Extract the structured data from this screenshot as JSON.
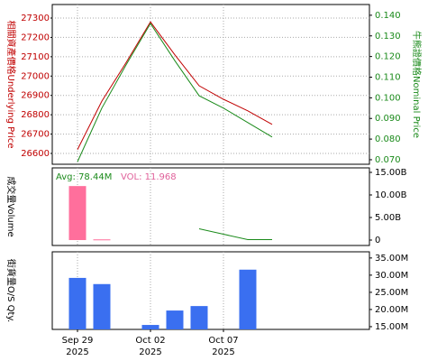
{
  "chart_data": [
    {
      "type": "line",
      "axis_label": "相關資產價格Underlying Price",
      "y2_label": "牛熊證價格Nominal Price",
      "ylim": [
        26544,
        27370
      ],
      "yticks": [
        26600,
        26700,
        26800,
        26900,
        27000,
        27100,
        27200,
        27300
      ],
      "y2lim": [
        0.0678,
        0.1452
      ],
      "y2ticks": [
        {
          "value": 0.07,
          "label": "0.070"
        },
        {
          "value": 0.08,
          "label": "0.080"
        },
        {
          "value": 0.09,
          "label": "0.090"
        },
        {
          "value": 0.1,
          "label": "0.100"
        },
        {
          "value": 0.11,
          "label": "0.110"
        },
        {
          "value": 0.12,
          "label": "0.120"
        },
        {
          "value": 0.13,
          "label": "0.130"
        },
        {
          "value": 0.14,
          "label": "0.140"
        }
      ],
      "grid": true,
      "series": [
        {
          "color": "#c00000",
          "values": [
            26620,
            26870,
            27070,
            27280,
            27110,
            26950,
            26880,
            26820,
            26750
          ]
        },
        {
          "color": "#1a8a1a",
          "axis": "y2",
          "values": [
            0.069,
            0.095,
            0.116,
            0.136,
            0.118,
            0.101,
            0.095,
            0.088,
            0.081
          ]
        }
      ]
    },
    {
      "type": "bar",
      "axis_label": "成交量Volume",
      "annotations": [
        "Avg: 78.44M",
        "VOL: 11.968"
      ],
      "ylim": [
        -1.2,
        16
      ],
      "yticks": [
        0,
        {
          "value": 5,
          "label": "5.00B"
        },
        {
          "value": 10,
          "label": "10.00B"
        },
        {
          "value": 15,
          "label": "15.00B"
        }
      ],
      "grid": true,
      "series": [
        {
          "type": "bar",
          "color": "#ff6f9c",
          "values": [
            11.968,
            0.15,
            null,
            null,
            null,
            null,
            null,
            null,
            null
          ]
        },
        {
          "type": "line",
          "color": "#1a8a1a",
          "values": [
            null,
            null,
            null,
            null,
            null,
            2.5,
            1.3,
            0.1,
            0.1
          ]
        }
      ]
    },
    {
      "type": "bar",
      "axis_label": "街貨量O/S Qty.",
      "ylim": [
        14.2,
        36.8
      ],
      "yticks": [
        {
          "value": 15,
          "label": "15.00M"
        },
        {
          "value": 20,
          "label": "20.00M"
        },
        {
          "value": 25,
          "label": "25.00M"
        },
        {
          "value": 30,
          "label": "30.00M"
        },
        {
          "value": 35,
          "label": "35.00M"
        }
      ],
      "grid": true,
      "categories": [
        "Sep 29",
        null,
        null,
        "Oct 02",
        null,
        null,
        "Oct 07",
        null,
        null
      ],
      "category_years": [
        "2025",
        null,
        null,
        "2025",
        null,
        null,
        "2025",
        null,
        null
      ],
      "series": [
        {
          "type": "bar",
          "color": "#3a6ff0",
          "values": [
            29.2,
            27.4,
            null,
            15.5,
            19.7,
            21.0,
            null,
            31.6,
            null
          ]
        }
      ]
    }
  ]
}
